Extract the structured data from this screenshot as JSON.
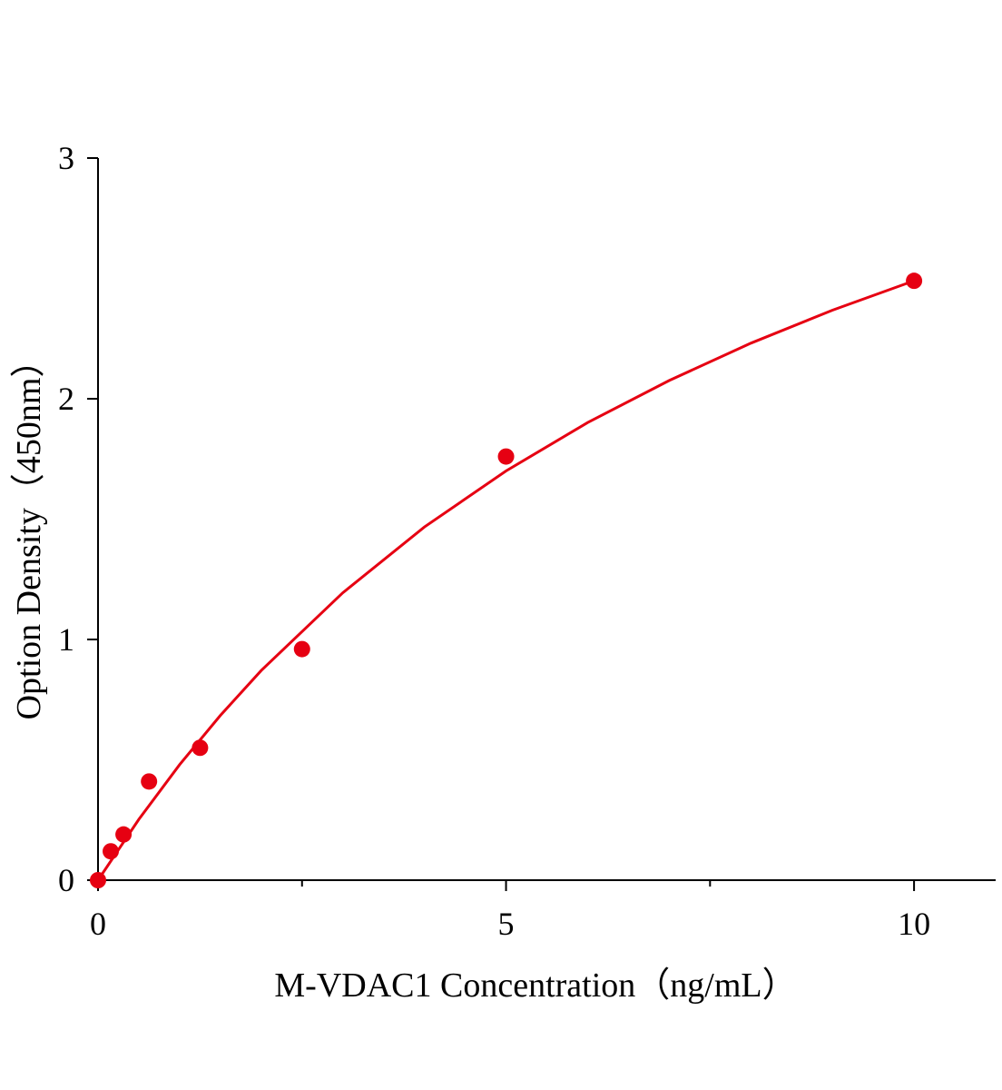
{
  "chart_data": {
    "type": "scatter",
    "x_label": "M-VDAC1 Concentration（ng/mL）",
    "y_label": "Option Density（450nm）",
    "xlim": [
      0,
      11
    ],
    "ylim": [
      0,
      3
    ],
    "xticks": [
      0,
      5,
      10
    ],
    "xminor_ticks": [
      2.5,
      7.5
    ],
    "yticks": [
      0,
      1,
      2,
      3
    ],
    "points": {
      "color": "#e60012",
      "x": [
        0,
        0.156,
        0.3125,
        0.625,
        1.25,
        2.5,
        5,
        10
      ],
      "y": [
        0,
        0.12,
        0.19,
        0.41,
        0.55,
        0.96,
        1.76,
        2.49
      ]
    },
    "curve": {
      "color": "#e60012",
      "x": [
        0,
        0.5,
        1,
        1.5,
        2,
        3,
        4,
        5,
        6,
        7,
        8,
        9,
        10
      ],
      "y": [
        0,
        0.253,
        0.48,
        0.685,
        0.871,
        1.194,
        1.467,
        1.7,
        1.901,
        2.076,
        2.231,
        2.368,
        2.49
      ]
    }
  }
}
